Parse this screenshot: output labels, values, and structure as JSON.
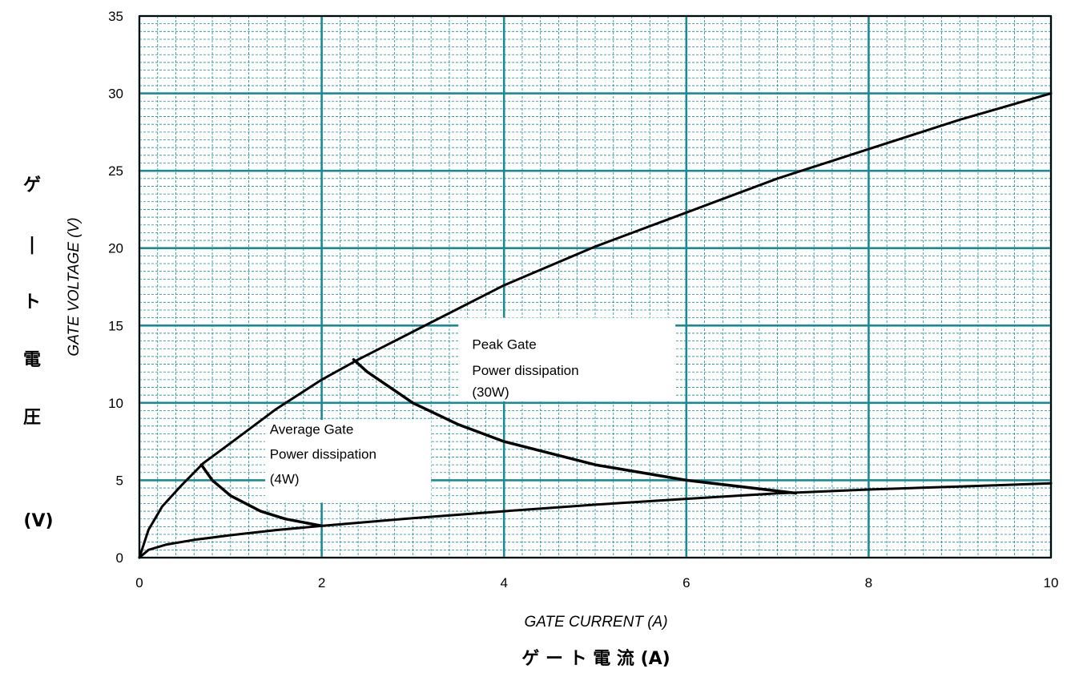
{
  "chart_data": {
    "type": "line",
    "xlabel": "GATE CURRENT (A)",
    "xlabel_jp": "ゲ ー ト 電 流 (A)",
    "ylabel": "GATE VOLTAGE (V)",
    "ylabel_jp_chars": [
      "ゲ",
      "ー",
      "ト",
      "電",
      "圧"
    ],
    "ylabel_jp_unit": "(V)",
    "xlim": [
      0,
      10
    ],
    "ylim": [
      0,
      35
    ],
    "x_ticks": [
      "0",
      "2",
      "4",
      "6",
      "8",
      "10"
    ],
    "y_ticks": [
      "0",
      "5",
      "10",
      "15",
      "20",
      "25",
      "30",
      "35"
    ],
    "grid": true,
    "grid_color": "#1a8a96",
    "series": [
      {
        "key": "upper",
        "points": [
          [
            0,
            0
          ],
          [
            0.1,
            1.8
          ],
          [
            0.25,
            3.3
          ],
          [
            0.45,
            4.6
          ],
          [
            0.7,
            6.1
          ],
          [
            1,
            7.4
          ],
          [
            1.5,
            9.6
          ],
          [
            2,
            11.5
          ],
          [
            2.4,
            12.8
          ],
          [
            3,
            14.6
          ],
          [
            4,
            17.6
          ],
          [
            5,
            20.1
          ],
          [
            6,
            22.3
          ],
          [
            7,
            24.5
          ],
          [
            8,
            26.4
          ],
          [
            9,
            28.3
          ],
          [
            10,
            30
          ]
        ]
      },
      {
        "key": "lower",
        "points": [
          [
            0,
            0
          ],
          [
            0.1,
            0.5
          ],
          [
            0.3,
            0.85
          ],
          [
            0.6,
            1.15
          ],
          [
            1,
            1.45
          ],
          [
            1.5,
            1.78
          ],
          [
            2,
            2.05
          ],
          [
            3,
            2.55
          ],
          [
            4,
            3.0
          ],
          [
            5,
            3.42
          ],
          [
            6,
            3.8
          ],
          [
            7,
            4.15
          ],
          [
            8,
            4.4
          ],
          [
            9,
            4.6
          ],
          [
            10,
            4.8
          ]
        ]
      },
      {
        "key": "avg-4w",
        "points": [
          [
            0.68,
            6.0
          ],
          [
            0.8,
            5.0
          ],
          [
            1.0,
            4.0
          ],
          [
            1.33,
            3.0
          ],
          [
            1.6,
            2.5
          ],
          [
            2.0,
            2.05
          ]
        ]
      },
      {
        "key": "peak-30w",
        "points": [
          [
            2.35,
            12.8
          ],
          [
            2.5,
            12.0
          ],
          [
            3.0,
            10.0
          ],
          [
            3.5,
            8.6
          ],
          [
            4.0,
            7.5
          ],
          [
            5.0,
            6.0
          ],
          [
            6.0,
            5.0
          ],
          [
            7.2,
            4.17
          ]
        ]
      }
    ],
    "annotations": [
      {
        "key": "peak",
        "lines": [
          "Peak Gate",
          "Power dissipation",
          "(30W)"
        ]
      },
      {
        "key": "avg",
        "lines": [
          "Average Gate",
          "Power dissipation",
          "(4W)"
        ]
      }
    ]
  }
}
